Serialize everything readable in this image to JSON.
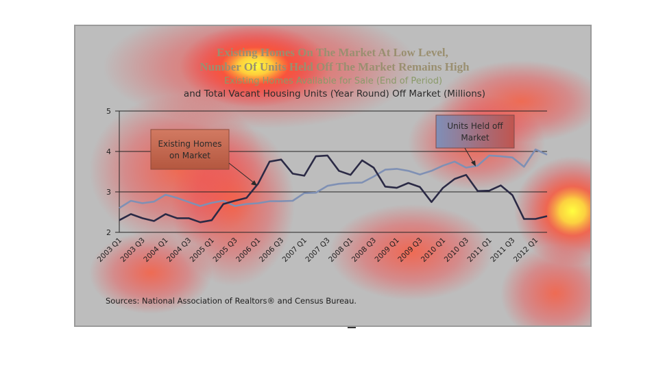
{
  "chart_data": {
    "type": "line",
    "title": "Existing Homes On The Market At Low Level, Number Of Units Held Off The Market Remains High",
    "subtitle_line1": "Existing Homes Available for Sale (End of Period)",
    "subtitle_line2": "and Total Vacant Housing Units (Year Round) Off Market (Millions)",
    "ylim": [
      2,
      5
    ],
    "yticks": [
      "2",
      "3",
      "4",
      "5"
    ],
    "grid": true,
    "x_labels": [
      "2003 Q1",
      "2003 Q3",
      "2004 Q1",
      "2004 Q3",
      "2005 Q1",
      "2005 Q3",
      "2006 Q1",
      "2006 Q3",
      "2007 Q1",
      "2007 Q3",
      "2008 Q1",
      "2008 Q3",
      "2009 Q1",
      "2009 Q3",
      "2010 Q1",
      "2010 Q3",
      "2011 Q1",
      "2011 Q3",
      "2012 Q1"
    ],
    "series": [
      {
        "name": "Existing Homes on Market",
        "color": "#2b2a45",
        "values": [
          2.3,
          2.45,
          2.35,
          2.28,
          2.45,
          2.35,
          2.35,
          2.25,
          2.3,
          2.7,
          2.78,
          2.85,
          3.2,
          3.75,
          3.8,
          3.45,
          3.4,
          3.88,
          3.9,
          3.52,
          3.42,
          3.78,
          3.6,
          3.13,
          3.1,
          3.22,
          3.12,
          2.75,
          3.1,
          3.32,
          3.42,
          3.02,
          3.03,
          3.16,
          2.92,
          2.33,
          2.33,
          2.4
        ]
      },
      {
        "name": "Units Held off Market",
        "color": "#7f90b4",
        "values": [
          2.6,
          2.78,
          2.72,
          2.76,
          2.93,
          2.85,
          2.75,
          2.65,
          2.73,
          2.78,
          2.65,
          2.7,
          2.72,
          2.77,
          2.77,
          2.78,
          2.97,
          2.98,
          3.15,
          3.2,
          3.22,
          3.23,
          3.38,
          3.55,
          3.57,
          3.52,
          3.43,
          3.52,
          3.65,
          3.75,
          3.6,
          3.65,
          3.9,
          3.88,
          3.85,
          3.62,
          4.05,
          3.92
        ]
      }
    ],
    "annotations": [
      {
        "text_line1": "Existing Homes",
        "text_line2": "on Market",
        "target_series": 0
      },
      {
        "text_line1": "Units Held off",
        "text_line2": "Market",
        "target_series": 1
      }
    ],
    "source": "Sources: National Association of Realtors® and Census Bureau."
  },
  "colors": {
    "frame_bg": "#bdbdbd",
    "grid": "#222222",
    "heat_hot": "#ffff3a",
    "heat_warm": "#ff3a2e",
    "annotation_box_1": "#c66a55",
    "annotation_box_2": "#b06a66"
  }
}
